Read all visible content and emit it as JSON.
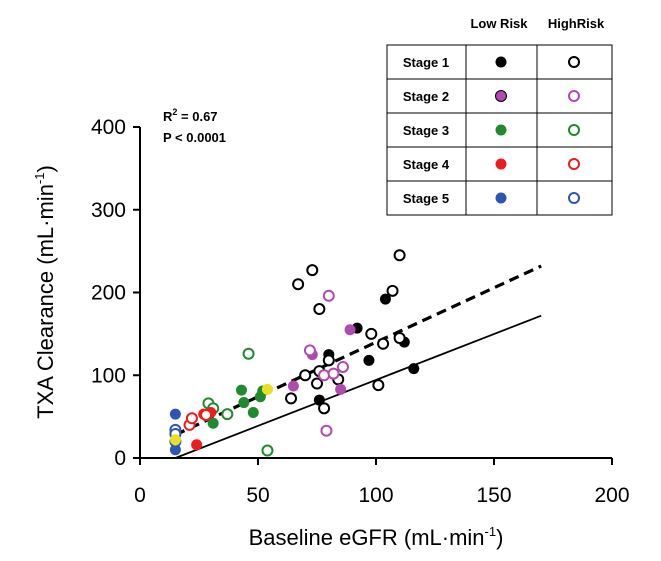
{
  "chart_data": {
    "type": "scatter",
    "xlabel": "Baseline eGFR (mL·min",
    "xlabel_sup": "-1",
    "xlabel_end": ")",
    "ylabel": "TXA Clearance (mL·min",
    "ylabel_sup": "-1",
    "ylabel_end": ")",
    "xlim": [
      0,
      200
    ],
    "ylim": [
      0,
      400
    ],
    "x_ticks": [
      "0",
      "50",
      "100",
      "150",
      "200"
    ],
    "y_ticks": [
      "0",
      "100",
      "200",
      "300",
      "400"
    ],
    "annotation": {
      "r2_prefix": "R",
      "r2_sup": "2",
      "r2_suffix": " = 0.67",
      "p_text": "P < 0.0001"
    },
    "legend": {
      "placement": "top-right",
      "headers": [
        "Low Risk",
        "HighRisk"
      ],
      "rows": [
        {
          "label": "Stage 1",
          "color": "#000000"
        },
        {
          "label": "Stage 2",
          "color": "#b049b0"
        },
        {
          "label": "Stage 3",
          "color": "#1f8a2e"
        },
        {
          "label": "Stage 4",
          "color": "#ee1c1c"
        },
        {
          "label": "Stage 5",
          "color": "#2d55b8"
        }
      ]
    },
    "trendlines": [
      {
        "style": "solid",
        "from": [
          15,
          0
        ],
        "to": [
          170,
          172
        ]
      },
      {
        "style": "dashed",
        "from": [
          15,
          28
        ],
        "to": [
          170,
          232
        ]
      }
    ],
    "series": [
      {
        "stage": 1,
        "risk": "low",
        "points": [
          [
            76,
            70
          ],
          [
            80,
            125
          ],
          [
            92,
            157
          ],
          [
            97,
            118
          ],
          [
            104,
            192
          ],
          [
            112,
            140
          ],
          [
            116,
            108
          ]
        ]
      },
      {
        "stage": 1,
        "risk": "high",
        "points": [
          [
            67,
            210
          ],
          [
            73,
            227
          ],
          [
            76,
            180
          ],
          [
            64,
            72
          ],
          [
            70,
            100
          ],
          [
            75,
            90
          ],
          [
            76,
            105
          ],
          [
            78,
            60
          ],
          [
            80,
            118
          ],
          [
            84,
            95
          ],
          [
            98,
            150
          ],
          [
            101,
            88
          ],
          [
            103,
            138
          ],
          [
            107,
            202
          ],
          [
            110,
            245
          ],
          [
            110,
            145
          ]
        ]
      },
      {
        "stage": 2,
        "risk": "low",
        "points": [
          [
            65,
            87
          ],
          [
            73,
            125
          ],
          [
            85,
            83
          ],
          [
            89,
            155
          ]
        ]
      },
      {
        "stage": 2,
        "risk": "high",
        "points": [
          [
            72,
            130
          ],
          [
            78,
            100
          ],
          [
            80,
            196
          ],
          [
            82,
            102
          ],
          [
            86,
            110
          ],
          [
            79,
            33
          ]
        ]
      },
      {
        "stage": 3,
        "risk": "low",
        "points": [
          [
            31,
            42
          ],
          [
            43,
            82
          ],
          [
            44,
            67
          ],
          [
            48,
            55
          ],
          [
            51,
            74
          ],
          [
            52,
            81
          ]
        ]
      },
      {
        "stage": 3,
        "risk": "high",
        "points": [
          [
            29,
            66
          ],
          [
            31,
            60
          ],
          [
            37,
            53
          ],
          [
            46,
            126
          ],
          [
            54,
            9
          ]
        ]
      },
      {
        "stage": 4,
        "risk": "low",
        "points": [
          [
            24,
            16
          ],
          [
            27,
            53
          ],
          [
            30,
            55
          ]
        ]
      },
      {
        "stage": 4,
        "risk": "high",
        "points": [
          [
            21,
            40
          ],
          [
            22,
            48
          ],
          [
            28,
            52
          ]
        ]
      },
      {
        "stage": 5,
        "risk": "low",
        "points": [
          [
            15,
            53
          ],
          [
            15,
            10
          ]
        ]
      },
      {
        "stage": 5,
        "risk": "high",
        "points": [
          [
            15,
            34
          ],
          [
            15,
            29
          ],
          [
            15,
            20
          ]
        ]
      },
      {
        "stage": 0,
        "risk": "low",
        "color": "#e8e020",
        "points": [
          [
            15,
            22
          ],
          [
            54,
            83
          ]
        ]
      }
    ]
  }
}
